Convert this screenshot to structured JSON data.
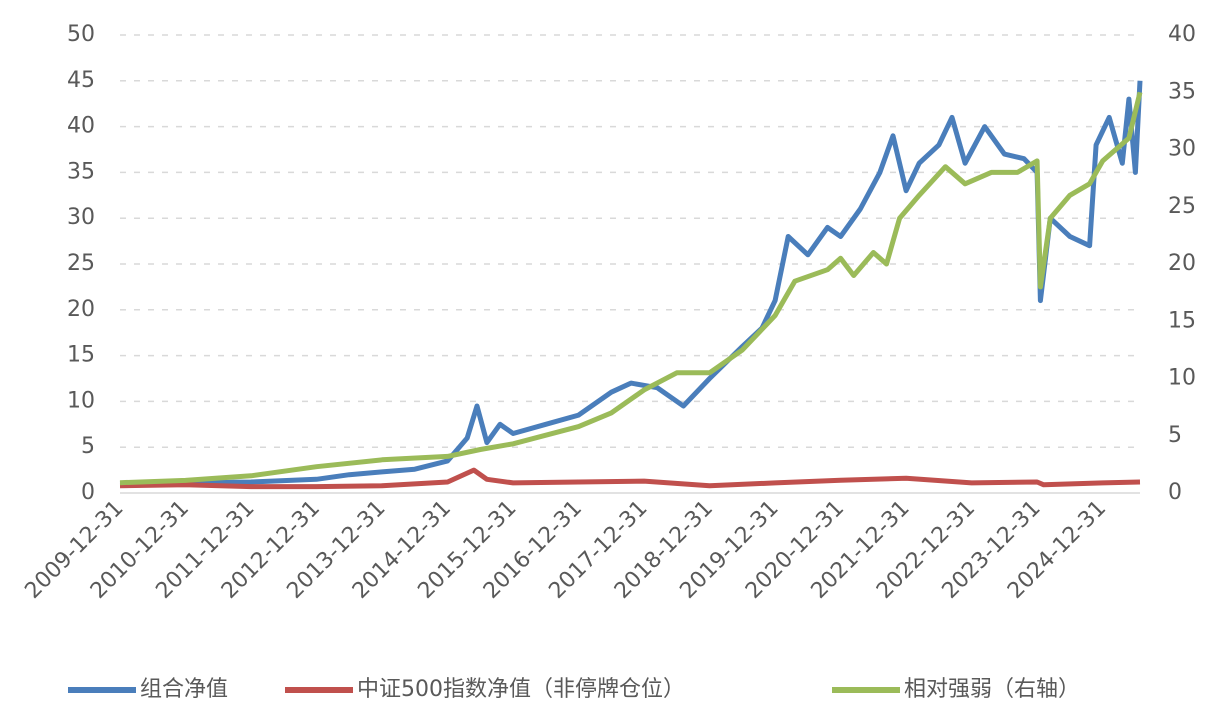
{
  "chart_data": {
    "type": "line",
    "xlim": [
      2010,
      2025.57
    ],
    "xticks": [
      {
        "value": 2010,
        "label": "2009-12-31"
      },
      {
        "value": 2011,
        "label": "2010-12-31"
      },
      {
        "value": 2012,
        "label": "2011-12-31"
      },
      {
        "value": 2013,
        "label": "2012-12-31"
      },
      {
        "value": 2014,
        "label": "2013-12-31"
      },
      {
        "value": 2015,
        "label": "2014-12-31"
      },
      {
        "value": 2016,
        "label": "2015-12-31"
      },
      {
        "value": 2017,
        "label": "2016-12-31"
      },
      {
        "value": 2018,
        "label": "2017-12-31"
      },
      {
        "value": 2019,
        "label": "2018-12-31"
      },
      {
        "value": 2020,
        "label": "2019-12-31"
      },
      {
        "value": 2021,
        "label": "2020-12-31"
      },
      {
        "value": 2022,
        "label": "2021-12-31"
      },
      {
        "value": 2023,
        "label": "2022-12-31"
      },
      {
        "value": 2024,
        "label": "2023-12-31"
      },
      {
        "value": 2025,
        "label": "2024-12-31"
      }
    ],
    "ylim": [
      0,
      50
    ],
    "yticks": [
      0,
      5,
      10,
      15,
      20,
      25,
      30,
      35,
      40,
      45,
      50
    ],
    "y2lim": [
      0,
      40
    ],
    "y2ticks": [
      0,
      5,
      10,
      15,
      20,
      25,
      30,
      35,
      40
    ],
    "grid": true,
    "legend": "bottom",
    "series": [
      {
        "name": "组合净值",
        "color": "#4a7ebb",
        "x": [
          2010,
          2011,
          2012,
          2013,
          2013.5,
          2014,
          2014.5,
          2015,
          2015.3,
          2015.45,
          2015.6,
          2015.8,
          2016,
          2016.5,
          2017,
          2017.5,
          2017.8,
          2018.2,
          2018.6,
          2019,
          2019.5,
          2019.8,
          2020,
          2020.2,
          2020.5,
          2020.8,
          2021,
          2021.3,
          2021.6,
          2021.8,
          2022,
          2022.2,
          2022.5,
          2022.7,
          2022.9,
          2023.2,
          2023.5,
          2023.8,
          2024,
          2024.05,
          2024.2,
          2024.5,
          2024.8,
          2024.9,
          2025.1,
          2025.3,
          2025.4,
          2025.5,
          2025.57
        ],
        "values": [
          1,
          1.1,
          1.2,
          1.5,
          2,
          2.3,
          2.6,
          3.5,
          6,
          9.5,
          5.5,
          7.5,
          6.5,
          7.5,
          8.5,
          11,
          12,
          11.5,
          9.5,
          12.5,
          16,
          18,
          21,
          28,
          26,
          29,
          28,
          31,
          35,
          39,
          33,
          36,
          38,
          41,
          36,
          40,
          37,
          36.5,
          35,
          21,
          30,
          28,
          27,
          38,
          41,
          36,
          43,
          35,
          45
        ]
      },
      {
        "name": "中证500指数净值（非停牌仓位）",
        "color": "#c0504d",
        "x": [
          2010,
          2011,
          2012,
          2013,
          2014,
          2015,
          2015.4,
          2015.6,
          2016,
          2017,
          2018,
          2019,
          2020,
          2021,
          2022,
          2023,
          2024,
          2024.1,
          2025,
          2025.57
        ],
        "values": [
          0.8,
          0.9,
          0.7,
          0.7,
          0.8,
          1.2,
          2.5,
          1.5,
          1.1,
          1.2,
          1.3,
          0.8,
          1.1,
          1.4,
          1.6,
          1.1,
          1.2,
          0.9,
          1.1,
          1.2
        ]
      },
      {
        "name": "相对强弱（右轴）",
        "color": "#9bbb59",
        "axis": "y2",
        "x": [
          2010,
          2011,
          2012,
          2013,
          2014,
          2015,
          2015.5,
          2016,
          2017,
          2017.5,
          2018,
          2018.5,
          2019,
          2019.5,
          2020,
          2020.3,
          2020.8,
          2021,
          2021.2,
          2021.5,
          2021.7,
          2021.9,
          2022.2,
          2022.6,
          2022.9,
          2023.3,
          2023.7,
          2024,
          2024.05,
          2024.2,
          2024.5,
          2024.8,
          2025,
          2025.2,
          2025.4,
          2025.57
        ],
        "values": [
          0.9,
          1.1,
          1.5,
          2.3,
          2.9,
          3.2,
          3.8,
          4.3,
          5.8,
          7,
          9,
          10.5,
          10.5,
          12.5,
          15.5,
          18.5,
          19.5,
          20.5,
          19,
          21,
          20,
          24,
          26,
          28.5,
          27,
          28,
          28,
          29,
          18,
          24,
          26,
          27,
          29,
          30,
          31,
          35
        ]
      }
    ]
  }
}
